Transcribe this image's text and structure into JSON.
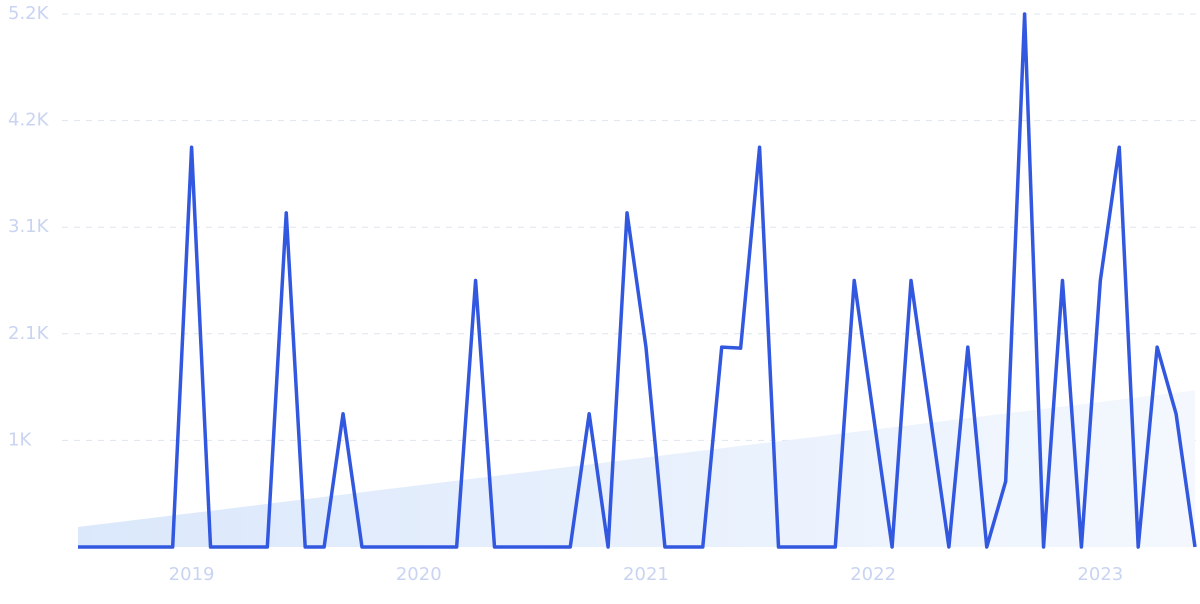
{
  "chart_data": {
    "type": "line",
    "categories": [
      null,
      null,
      null,
      null,
      null,
      null,
      "2019",
      null,
      null,
      null,
      null,
      null,
      null,
      null,
      null,
      null,
      null,
      null,
      "2020",
      null,
      null,
      null,
      null,
      null,
      null,
      null,
      null,
      null,
      null,
      null,
      "2021",
      null,
      null,
      null,
      null,
      null,
      null,
      null,
      null,
      null,
      null,
      null,
      "2022",
      null,
      null,
      null,
      null,
      null,
      null,
      null,
      null,
      null,
      null,
      null,
      "2023",
      null,
      null,
      null,
      null,
      null
    ],
    "series": [
      {
        "color": "#3358e0",
        "values": [
          0,
          0,
          0,
          0,
          0,
          0,
          3900,
          0,
          0,
          0,
          0,
          3260,
          0,
          0,
          1300,
          0,
          0,
          0,
          0,
          0,
          0,
          2600,
          0,
          0,
          0,
          0,
          0,
          1300,
          0,
          3260,
          1950,
          0,
          0,
          0,
          1950,
          1940,
          3900,
          0,
          0,
          0,
          0,
          2600,
          1300,
          0,
          2600,
          1300,
          0,
          1950,
          0,
          640,
          5200,
          0,
          2600,
          0,
          2600,
          3900,
          0,
          1950,
          1300,
          0
        ]
      },
      {
        "color": "#dbe8fb",
        "area": true,
        "values": [
          195,
          218,
          240,
          263,
          285,
          308,
          331,
          353,
          376,
          398,
          421,
          444,
          466,
          489,
          511,
          534,
          557,
          579,
          602,
          624,
          647,
          670,
          692,
          715,
          737,
          760,
          783,
          805,
          828,
          850,
          873,
          896,
          918,
          941,
          963,
          986,
          1009,
          1031,
          1054,
          1076,
          1099,
          1122,
          1144,
          1167,
          1189,
          1212,
          1235,
          1257,
          1280,
          1302,
          1325,
          1348,
          1370,
          1393,
          1415,
          1438,
          1461,
          1483,
          1506,
          1528
        ]
      }
    ],
    "ylim": [
      0,
      5200
    ],
    "yticks": [
      {
        "value": 1040,
        "label": "1K"
      },
      {
        "value": 2080,
        "label": "2.1K"
      },
      {
        "value": 3120,
        "label": "3.1K"
      },
      {
        "value": 4160,
        "label": "4.2K"
      },
      {
        "value": 5200,
        "label": "5.2K"
      }
    ],
    "grid": true
  }
}
